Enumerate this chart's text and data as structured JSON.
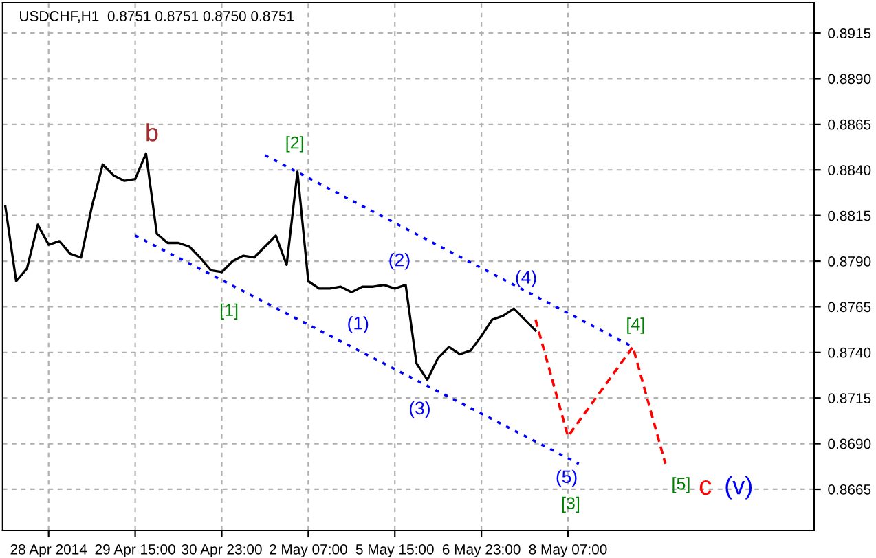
{
  "chart_data": {
    "type": "line",
    "title": "USDCHF,H1  0.8751 0.8751 0.8750 0.8751",
    "categories": [
      null,
      null,
      null,
      null,
      "28 Apr 2014",
      null,
      null,
      null,
      null,
      null,
      null,
      null,
      "29 Apr 15:00",
      null,
      null,
      null,
      null,
      null,
      null,
      null,
      "30 Apr 23:00",
      null,
      null,
      null,
      null,
      null,
      null,
      null,
      "2 May 07:00",
      null,
      null,
      null,
      null,
      null,
      null,
      null,
      "5 May 15:00",
      null,
      null,
      null,
      null,
      null,
      null,
      null,
      "6 May 23:00",
      null,
      null,
      null,
      null,
      null,
      null,
      null,
      "8 May 07:00",
      null,
      null,
      null,
      null,
      null,
      null,
      null,
      null,
      null,
      null,
      null,
      null,
      null,
      null,
      null,
      null,
      null,
      null,
      null,
      null,
      null,
      null
    ],
    "ylim": [
      0.86424,
      0.89316
    ],
    "yticks": [
      {
        "value": 0.8665,
        "label": "0.8665"
      },
      {
        "value": 0.869,
        "label": "0.8690"
      },
      {
        "value": 0.8715,
        "label": "0.8715"
      },
      {
        "value": 0.874,
        "label": "0.8740"
      },
      {
        "value": 0.8765,
        "label": "0.8765"
      },
      {
        "value": 0.879,
        "label": "0.8790"
      },
      {
        "value": 0.8815,
        "label": "0.8815"
      },
      {
        "value": 0.884,
        "label": "0.8840"
      },
      {
        "value": 0.8865,
        "label": "0.8865"
      },
      {
        "value": 0.889,
        "label": "0.8890"
      },
      {
        "value": 0.8915,
        "label": "0.8915"
      }
    ],
    "grid": true,
    "legend": false,
    "marker": "none",
    "series": [
      {
        "color": "#000000",
        "line_style": "solid",
        "values": [
          0.882,
          0.8779,
          0.8786,
          0.881,
          0.8799,
          0.8801,
          0.8794,
          0.8792,
          0.882,
          0.8843,
          0.8837,
          0.8834,
          0.8835,
          0.8849,
          0.8805,
          0.88,
          0.88,
          0.8798,
          0.8792,
          0.8785,
          0.8784,
          0.879,
          0.8793,
          0.8792,
          0.8798,
          0.8804,
          0.8788,
          0.8839,
          0.8779,
          0.8775,
          0.8775,
          0.8776,
          0.8773,
          0.8776,
          0.8776,
          0.8777,
          0.8775,
          0.8777,
          0.8734,
          0.8725,
          0.8737,
          0.8743,
          0.8739,
          0.8741,
          0.8749,
          0.8758,
          0.876,
          0.8764,
          0.8758,
          0.8752,
          null,
          null,
          null,
          null,
          null,
          null,
          null,
          null,
          null,
          null,
          null,
          null,
          null,
          null,
          null,
          null,
          null,
          null,
          null,
          null,
          null,
          null,
          null,
          null,
          null
        ]
      },
      {
        "color": "#0000ff",
        "line_style": "dotted",
        "values": [
          null,
          null,
          null,
          null,
          null,
          null,
          null,
          null,
          null,
          null,
          null,
          null,
          null,
          null,
          null,
          null,
          null,
          null,
          null,
          null,
          null,
          null,
          null,
          null,
          0.8848,
          null,
          null,
          null,
          null,
          null,
          null,
          null,
          null,
          null,
          null,
          null,
          null,
          null,
          null,
          null,
          null,
          null,
          null,
          null,
          null,
          null,
          null,
          null,
          null,
          null,
          null,
          null,
          null,
          null,
          null,
          null,
          null,
          null,
          0.8743,
          null,
          null,
          null,
          null,
          null,
          null,
          null,
          null,
          null,
          null,
          null,
          null,
          null,
          null,
          null,
          null
        ]
      },
      {
        "color": "#0000ff",
        "line_style": "dotted",
        "values": [
          null,
          null,
          null,
          null,
          null,
          null,
          null,
          null,
          null,
          null,
          null,
          null,
          0.8804,
          null,
          null,
          null,
          null,
          null,
          null,
          null,
          null,
          null,
          null,
          null,
          null,
          null,
          null,
          null,
          null,
          null,
          null,
          null,
          null,
          null,
          null,
          null,
          null,
          null,
          null,
          null,
          null,
          null,
          null,
          null,
          null,
          null,
          null,
          null,
          null,
          null,
          null,
          null,
          null,
          0.8679,
          null,
          null,
          null,
          null,
          null,
          null,
          null,
          null,
          null,
          null,
          null,
          null,
          null,
          null,
          null,
          null,
          null,
          null,
          null,
          null,
          null
        ]
      },
      {
        "color": "#ff0000",
        "line_style": "dashed",
        "values": [
          null,
          null,
          null,
          null,
          null,
          null,
          null,
          null,
          null,
          null,
          null,
          null,
          null,
          null,
          null,
          null,
          null,
          null,
          null,
          null,
          null,
          null,
          null,
          null,
          null,
          null,
          null,
          null,
          null,
          null,
          null,
          null,
          null,
          null,
          null,
          null,
          null,
          null,
          null,
          null,
          null,
          null,
          null,
          null,
          null,
          null,
          null,
          null,
          null,
          0.8758,
          null,
          null,
          0.8694,
          null,
          null,
          null,
          null,
          null,
          0.8743,
          null,
          null,
          0.8679,
          null,
          null,
          null,
          null,
          null,
          null,
          null,
          null,
          null,
          null,
          null,
          null,
          null
        ]
      }
    ],
    "annotations": [
      "b",
      "[2]",
      "[1]",
      "(1)",
      "(2)",
      "(3)",
      "(4)",
      "(5)",
      "[3]",
      "[4]",
      "[5]",
      "c",
      "(v)"
    ]
  }
}
